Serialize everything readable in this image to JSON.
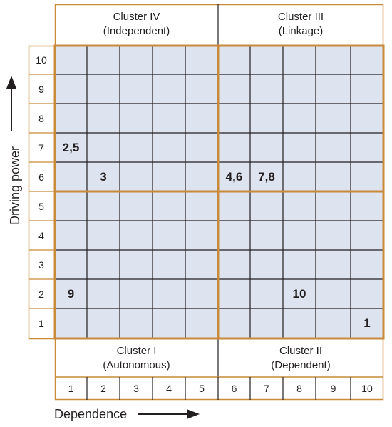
{
  "clusters": {
    "top_left": {
      "name": "Cluster IV",
      "desc": "(Independent)"
    },
    "top_right": {
      "name": "Cluster III",
      "desc": "(Linkage)"
    },
    "bottom_left": {
      "name": "Cluster I",
      "desc": "(Autonomous)"
    },
    "bottom_right": {
      "name": "Cluster II",
      "desc": "(Dependent)"
    }
  },
  "axes": {
    "y_title": "Driving power",
    "x_title": "Dependence",
    "y_ticks": [
      "10",
      "9",
      "8",
      "7",
      "6",
      "5",
      "4",
      "3",
      "2",
      "1"
    ],
    "x_ticks": [
      "1",
      "2",
      "3",
      "4",
      "5",
      "6",
      "7",
      "8",
      "9",
      "10"
    ]
  },
  "placements": [
    {
      "label": "2,5",
      "dependence": 1,
      "driving_power": 7
    },
    {
      "label": "3",
      "dependence": 2,
      "driving_power": 6
    },
    {
      "label": "4,6",
      "dependence": 6,
      "driving_power": 6
    },
    {
      "label": "7,8",
      "dependence": 7,
      "driving_power": 6
    },
    {
      "label": "9",
      "dependence": 1,
      "driving_power": 2
    },
    {
      "label": "10",
      "dependence": 8,
      "driving_power": 2
    },
    {
      "label": "1",
      "dependence": 10,
      "driving_power": 1
    }
  ],
  "colors": {
    "grid_fill": "#dde3ef",
    "grid_line": "#231f20",
    "frame_orange": "#c98a3a"
  }
}
